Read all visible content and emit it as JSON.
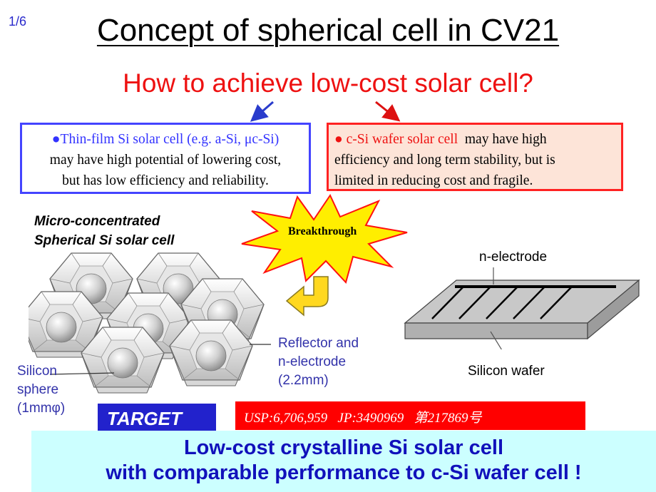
{
  "page_number": "1/6",
  "title": "Concept of spherical cell in CV21",
  "question": "How to achieve low-cost solar cell?",
  "left_box": {
    "highlight": "●Thin-film Si solar cell (e.g. a-Si, μc-Si)",
    "line2": "may have high potential of lowering cost,",
    "line3": "but has low efficiency and reliability."
  },
  "right_box": {
    "highlight": "● c-Si wafer solar cell",
    "rest1": "  may have high",
    "line2": "efficiency and long term stability, but is",
    "line3": "limited in reducing cost and fragile."
  },
  "cell_label": {
    "line1": "Micro-concentrated",
    "line2": "Spherical Si solar cell"
  },
  "breakthrough": "Breakthrough",
  "wafer_diagram": {
    "n_electrode": "n-electrode",
    "silicon_wafer": "Silicon wafer"
  },
  "reflector_label": {
    "line1": "Reflector and",
    "line2": "n-electrode",
    "line3": "(2.2mm)"
  },
  "sphere_label": {
    "line1": "Silicon",
    "line2": "sphere",
    "line3": "(1mmφ)"
  },
  "target": "TARGET",
  "patent": "USP:6,706,959   JP:3490969   第217869号",
  "bottom": {
    "line1": "Low-cost crystalline Si solar cell",
    "line2": "with comparable performance to c-Si wafer cell !"
  },
  "colors": {
    "title_red": "#ee1111",
    "thin_film_blue": "#3333ff",
    "target_blue": "#2222cc",
    "patent_red": "#ff0000",
    "bottom_bg": "#ccffff"
  }
}
